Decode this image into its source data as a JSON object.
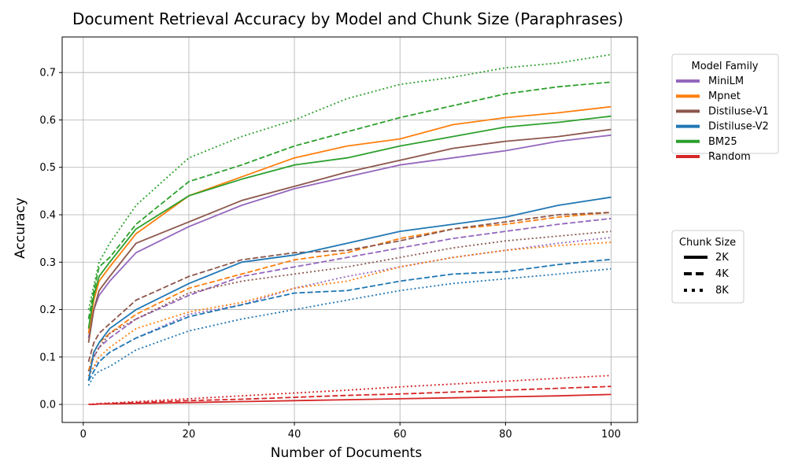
{
  "chart_data": {
    "type": "line",
    "title": "Document Retrieval Accuracy by Model and Chunk Size (Paraphrases)",
    "xlabel": "Number of Documents",
    "ylabel": "Accuracy",
    "xlim": [
      -4,
      105
    ],
    "ylim": [
      -0.038,
      0.775
    ],
    "grid": true,
    "x_ticks": [
      0,
      20,
      40,
      60,
      80,
      100
    ],
    "x_tick_labels": [
      "0",
      "20",
      "40",
      "60",
      "80",
      "100"
    ],
    "y_ticks": [
      0.0,
      0.1,
      0.2,
      0.3,
      0.4,
      0.5,
      0.6,
      0.7
    ],
    "y_tick_labels": [
      "0.0",
      "0.1",
      "0.2",
      "0.3",
      "0.4",
      "0.5",
      "0.6",
      "0.7"
    ],
    "x": [
      1,
      2,
      3,
      5,
      10,
      20,
      30,
      40,
      50,
      60,
      70,
      80,
      90,
      100
    ],
    "legend_model": {
      "title": "Model Family",
      "placement": "upper right, outside plot",
      "entries": [
        {
          "label": "MiniLM",
          "color": "#9467bd"
        },
        {
          "label": "Mpnet",
          "color": "#ff7f0e"
        },
        {
          "label": "Distiluse-V1",
          "color": "#8c564b"
        },
        {
          "label": "Distiluse-V2",
          "color": "#1f77b4"
        },
        {
          "label": "BM25",
          "color": "#2ca02c"
        },
        {
          "label": "Random",
          "color": "#d62728"
        }
      ]
    },
    "legend_chunk": {
      "title": "Chunk Size",
      "placement": "right, outside plot",
      "entries": [
        {
          "label": "2K",
          "style": "solid"
        },
        {
          "label": "4K",
          "style": "dashed"
        },
        {
          "label": "8K",
          "style": "dotted"
        }
      ]
    },
    "series": [
      {
        "model": "MiniLM",
        "chunk": "2K",
        "color": "#9467bd",
        "style": "solid",
        "values": [
          0.14,
          0.2,
          0.23,
          0.26,
          0.32,
          0.375,
          0.42,
          0.455,
          0.48,
          0.505,
          0.52,
          0.535,
          0.555,
          0.568
        ]
      },
      {
        "model": "MiniLM",
        "chunk": "4K",
        "color": "#9467bd",
        "style": "dashed",
        "values": [
          0.07,
          0.1,
          0.12,
          0.14,
          0.18,
          0.23,
          0.27,
          0.29,
          0.31,
          0.33,
          0.35,
          0.365,
          0.38,
          0.392
        ]
      },
      {
        "model": "MiniLM",
        "chunk": "8K",
        "color": "#9467bd",
        "style": "dotted",
        "values": [
          0.06,
          0.08,
          0.09,
          0.11,
          0.14,
          0.19,
          0.21,
          0.245,
          0.27,
          0.29,
          0.31,
          0.325,
          0.34,
          0.352
        ]
      },
      {
        "model": "Mpnet",
        "chunk": "2K",
        "color": "#ff7f0e",
        "style": "solid",
        "values": [
          0.15,
          0.22,
          0.26,
          0.29,
          0.36,
          0.44,
          0.48,
          0.52,
          0.545,
          0.56,
          0.59,
          0.605,
          0.615,
          0.628
        ]
      },
      {
        "model": "Mpnet",
        "chunk": "4K",
        "color": "#ff7f0e",
        "style": "dashed",
        "values": [
          0.07,
          0.11,
          0.13,
          0.15,
          0.19,
          0.245,
          0.275,
          0.305,
          0.32,
          0.35,
          0.37,
          0.38,
          0.395,
          0.405
        ]
      },
      {
        "model": "Mpnet",
        "chunk": "8K",
        "color": "#ff7f0e",
        "style": "dotted",
        "values": [
          0.06,
          0.08,
          0.1,
          0.12,
          0.16,
          0.195,
          0.215,
          0.245,
          0.26,
          0.29,
          0.31,
          0.325,
          0.335,
          0.342
        ]
      },
      {
        "model": "Distiluse-V1",
        "chunk": "2K",
        "color": "#8c564b",
        "style": "solid",
        "values": [
          0.13,
          0.2,
          0.24,
          0.27,
          0.34,
          0.385,
          0.43,
          0.46,
          0.49,
          0.515,
          0.54,
          0.555,
          0.565,
          0.58
        ]
      },
      {
        "model": "Distiluse-V1",
        "chunk": "4K",
        "color": "#8c564b",
        "style": "dashed",
        "values": [
          0.09,
          0.13,
          0.15,
          0.17,
          0.22,
          0.27,
          0.305,
          0.32,
          0.325,
          0.345,
          0.37,
          0.385,
          0.4,
          0.405
        ]
      },
      {
        "model": "Distiluse-V1",
        "chunk": "8K",
        "color": "#8c564b",
        "style": "dotted",
        "values": [
          0.07,
          0.1,
          0.12,
          0.15,
          0.18,
          0.235,
          0.26,
          0.275,
          0.29,
          0.31,
          0.33,
          0.345,
          0.355,
          0.365
        ]
      },
      {
        "model": "Distiluse-V2",
        "chunk": "2K",
        "color": "#1f77b4",
        "style": "solid",
        "values": [
          0.05,
          0.11,
          0.13,
          0.16,
          0.2,
          0.255,
          0.3,
          0.315,
          0.34,
          0.365,
          0.38,
          0.395,
          0.42,
          0.437
        ]
      },
      {
        "model": "Distiluse-V2",
        "chunk": "4K",
        "color": "#1f77b4",
        "style": "dashed",
        "values": [
          0.05,
          0.07,
          0.09,
          0.11,
          0.14,
          0.185,
          0.21,
          0.235,
          0.24,
          0.26,
          0.275,
          0.28,
          0.295,
          0.306
        ]
      },
      {
        "model": "Distiluse-V2",
        "chunk": "8K",
        "color": "#1f77b4",
        "style": "dotted",
        "values": [
          0.04,
          0.06,
          0.07,
          0.08,
          0.115,
          0.155,
          0.18,
          0.2,
          0.22,
          0.24,
          0.255,
          0.265,
          0.275,
          0.286
        ]
      },
      {
        "model": "BM25",
        "chunk": "2K",
        "color": "#2ca02c",
        "style": "solid",
        "values": [
          0.16,
          0.23,
          0.27,
          0.3,
          0.37,
          0.44,
          0.475,
          0.505,
          0.52,
          0.545,
          0.565,
          0.585,
          0.595,
          0.608
        ]
      },
      {
        "model": "BM25",
        "chunk": "4K",
        "color": "#2ca02c",
        "style": "dashed",
        "values": [
          0.18,
          0.24,
          0.29,
          0.31,
          0.38,
          0.47,
          0.505,
          0.545,
          0.575,
          0.605,
          0.63,
          0.655,
          0.67,
          0.68
        ]
      },
      {
        "model": "BM25",
        "chunk": "8K",
        "color": "#2ca02c",
        "style": "dotted",
        "values": [
          0.2,
          0.25,
          0.3,
          0.34,
          0.42,
          0.52,
          0.565,
          0.6,
          0.645,
          0.675,
          0.69,
          0.71,
          0.72,
          0.738
        ]
      },
      {
        "model": "Random",
        "chunk": "2K",
        "color": "#d62728",
        "style": "solid",
        "values": [
          0.0,
          0.0,
          0.001,
          0.001,
          0.002,
          0.004,
          0.006,
          0.008,
          0.01,
          0.012,
          0.014,
          0.016,
          0.018,
          0.021
        ]
      },
      {
        "model": "Random",
        "chunk": "4K",
        "color": "#d62728",
        "style": "dashed",
        "values": [
          0.0,
          0.0,
          0.001,
          0.002,
          0.004,
          0.008,
          0.011,
          0.015,
          0.019,
          0.022,
          0.026,
          0.03,
          0.034,
          0.038
        ]
      },
      {
        "model": "Random",
        "chunk": "8K",
        "color": "#d62728",
        "style": "dotted",
        "values": [
          0.0,
          0.001,
          0.002,
          0.003,
          0.006,
          0.012,
          0.018,
          0.024,
          0.03,
          0.037,
          0.043,
          0.049,
          0.055,
          0.061
        ]
      }
    ]
  }
}
